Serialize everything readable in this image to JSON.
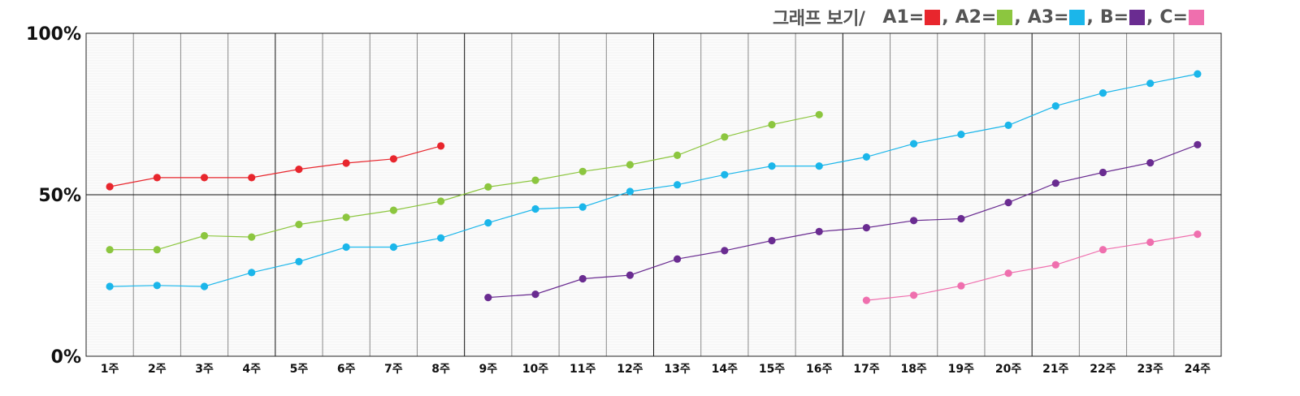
{
  "legend": {
    "title": "그래프 보기/",
    "items": [
      {
        "label": "A1=",
        "color": "#e8262d",
        "sep": ","
      },
      {
        "label": "A2=",
        "color": "#8cc63f",
        "sep": ","
      },
      {
        "label": "A3=",
        "color": "#1bb6ea",
        "sep": ","
      },
      {
        "label": "B=",
        "color": "#6a2c91",
        "sep": ","
      },
      {
        "label": "C=",
        "color": "#ef6fae",
        "sep": ""
      }
    ]
  },
  "chart_data": {
    "type": "line",
    "title": "",
    "xlabel": "",
    "ylabel": "",
    "categories": [
      "1주",
      "2주",
      "3주",
      "4주",
      "5주",
      "6주",
      "7주",
      "8주",
      "9주",
      "10주",
      "11주",
      "12주",
      "13주",
      "14주",
      "15주",
      "16주",
      "17주",
      "18주",
      "19주",
      "20주",
      "21주",
      "22주",
      "23주",
      "24주"
    ],
    "yticks": [
      "0%",
      "50%",
      "100%"
    ],
    "ylim": [
      0,
      100
    ],
    "grid": true,
    "legend_position": "top-right",
    "series": [
      {
        "name": "A1",
        "color": "#e8262d",
        "values": [
          52.5,
          55.3,
          55.3,
          55.3,
          57.9,
          59.8,
          61.1,
          65.1,
          null,
          null,
          null,
          null,
          null,
          null,
          null,
          null,
          null,
          null,
          null,
          null,
          null,
          null,
          null,
          null
        ]
      },
      {
        "name": "A2",
        "color": "#8cc63f",
        "values": [
          33.0,
          33.0,
          37.3,
          36.9,
          40.8,
          43.0,
          45.2,
          48.0,
          52.4,
          54.5,
          57.2,
          59.3,
          62.2,
          67.9,
          71.7,
          74.8,
          null,
          null,
          null,
          null,
          null,
          null,
          null,
          null
        ]
      },
      {
        "name": "A3",
        "color": "#1bb6ea",
        "values": [
          21.6,
          21.9,
          21.6,
          25.9,
          29.3,
          33.8,
          33.8,
          36.6,
          41.3,
          45.6,
          46.2,
          51.0,
          53.1,
          56.2,
          58.9,
          58.9,
          61.7,
          65.8,
          68.7,
          71.5,
          77.5,
          81.5,
          84.5,
          87.4
        ]
      },
      {
        "name": "B",
        "color": "#6a2c91",
        "values": [
          null,
          null,
          null,
          null,
          null,
          null,
          null,
          null,
          18.2,
          19.2,
          24.0,
          25.1,
          30.1,
          32.7,
          35.8,
          38.6,
          39.8,
          42.0,
          42.6,
          47.6,
          53.6,
          56.9,
          59.9,
          65.5
        ]
      },
      {
        "name": "C",
        "color": "#ef6fae",
        "values": [
          null,
          null,
          null,
          null,
          null,
          null,
          null,
          null,
          null,
          null,
          null,
          null,
          null,
          null,
          null,
          null,
          17.3,
          18.9,
          21.8,
          25.7,
          28.3,
          33.0,
          35.3,
          37.8
        ]
      }
    ]
  }
}
